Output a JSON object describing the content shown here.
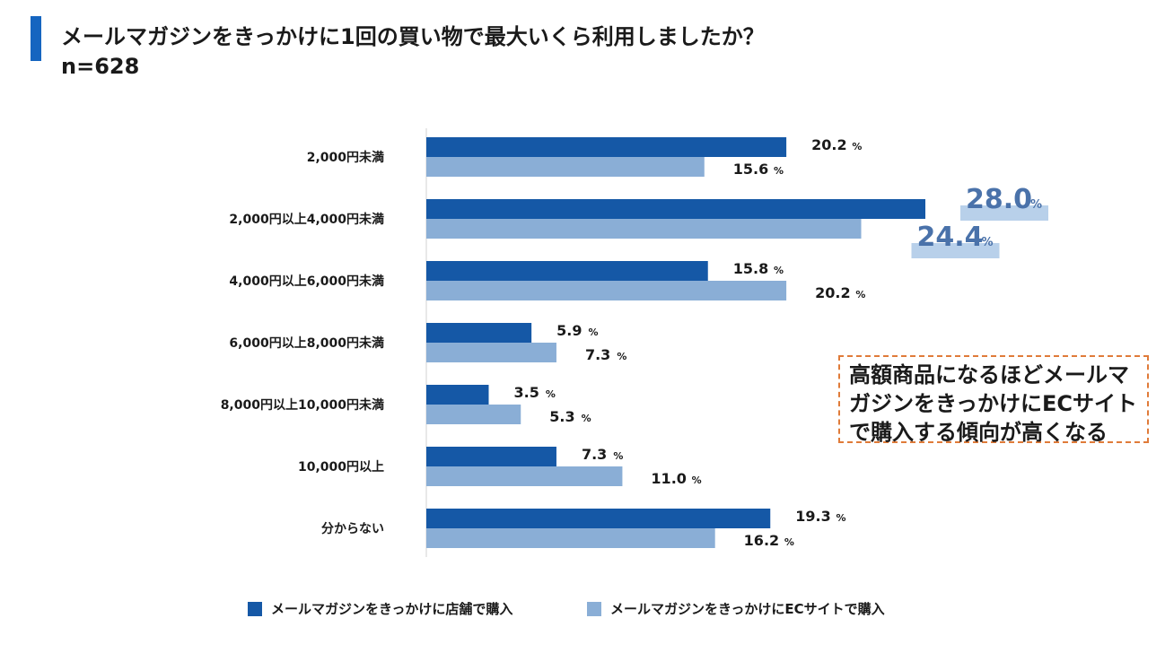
{
  "header": {
    "title": "メールマガジンをきっかけに1回の買い物で最大いくら利用しましたか？",
    "sample": "n=628"
  },
  "callout": {
    "text": "高額商品になるほどメールマガジンをきっかけにECサイトで購入する傾向が高くなる"
  },
  "colors": {
    "store": "#1558a6",
    "ec": "#8aaed6",
    "highlight": "#b8d0ea",
    "highlight_text": "#4a72aa",
    "callout_border": "#e07b39",
    "title_bar": "#1565c0"
  },
  "chart_data": {
    "type": "bar",
    "orientation": "horizontal",
    "title": "メールマガジンをきっかけに1回の買い物で最大いくら利用しましたか？",
    "unit": "%",
    "xlim": [
      0,
      28.5
    ],
    "categories": [
      "2,000円未満",
      "2,000円以上4,000円未満",
      "4,000円以上6,000円未満",
      "6,000円以上8,000円未満",
      "8,000円以上10,000円未満",
      "10,000円以上",
      "分からない"
    ],
    "series": [
      {
        "name": "メールマガジンをきっかけに店舗で購入",
        "values": [
          20.2,
          28.0,
          15.8,
          5.9,
          3.5,
          7.3,
          19.3
        ]
      },
      {
        "name": "メールマガジンをきっかけにECサイトで購入",
        "values": [
          15.6,
          24.4,
          20.2,
          7.3,
          5.3,
          11.0,
          16.2
        ]
      }
    ],
    "highlight_category_index": 1
  }
}
